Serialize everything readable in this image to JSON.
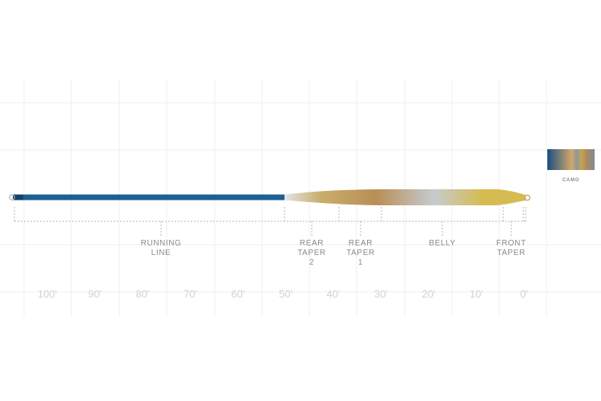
{
  "diagram": {
    "segments": [
      {
        "id": "running-line",
        "lines": [
          "RUNNING",
          "LINE"
        ]
      },
      {
        "id": "rear-taper-2",
        "lines": [
          "REAR",
          "TAPER",
          "2"
        ]
      },
      {
        "id": "rear-taper-1",
        "lines": [
          "REAR",
          "TAPER",
          "1"
        ]
      },
      {
        "id": "belly",
        "lines": [
          "BELLY"
        ]
      },
      {
        "id": "front-taper",
        "lines": [
          "FRONT",
          "TAPER"
        ]
      }
    ],
    "scale": {
      "unit": "feet",
      "ticks": [
        "100'",
        "90'",
        "80'",
        "70'",
        "60'",
        "50'",
        "40'",
        "30'",
        "20'",
        "10'",
        "0'"
      ]
    },
    "colors": {
      "running_line": "#1c5f93",
      "running_line_end": "#15406a",
      "gradient_stops": [
        "#e3e4e6",
        "#c9ad6c",
        "#b98e56",
        "#c6cbcf",
        "#d6bb52",
        "#d6bb52"
      ],
      "grid": "#efefef",
      "bracket": "#b5b5b5"
    },
    "swatch": {
      "label": "CAMO",
      "colors": [
        "#1a4f82",
        "#d4a86a",
        "#8a97a3",
        "#c8a24a",
        "#a98a64",
        "#7f8b95"
      ]
    }
  }
}
